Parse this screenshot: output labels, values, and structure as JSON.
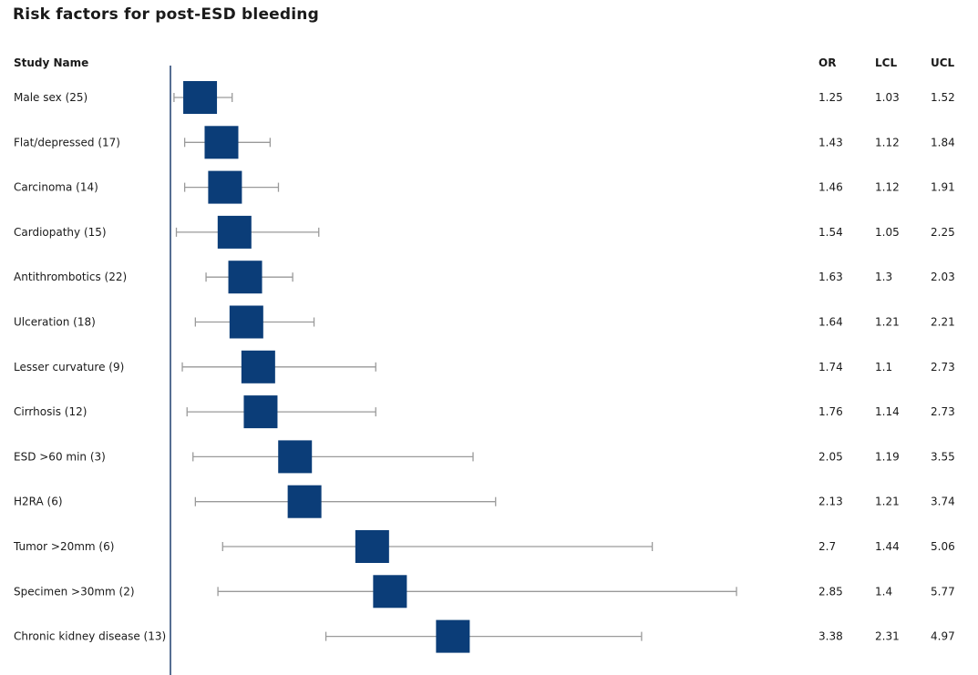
{
  "title": "Risk factors for post-ESD bleeding",
  "headers": {
    "study": "Study Name",
    "or": "OR",
    "lcl": "LCL",
    "ucl": "UCL"
  },
  "colors": {
    "marker": "#0b3d78",
    "whisker": "#9a9a9a",
    "axis": "#1f3f6e"
  },
  "chart_data": {
    "type": "forest",
    "title": "Risk factors for post-ESD bleeding",
    "columns": [
      "Study Name",
      "OR",
      "LCL",
      "UCL"
    ],
    "rows": [
      {
        "name": "Male sex (25)",
        "or": "1.25",
        "lcl": "1.03",
        "ucl": "1.52"
      },
      {
        "name": "Flat/depressed (17)",
        "or": "1.43",
        "lcl": "1.12",
        "ucl": "1.84"
      },
      {
        "name": "Carcinoma (14)",
        "or": "1.46",
        "lcl": "1.12",
        "ucl": "1.91"
      },
      {
        "name": "Cardiopathy (15)",
        "or": "1.54",
        "lcl": "1.05",
        "ucl": "2.25"
      },
      {
        "name": "Antithrombotics (22)",
        "or": "1.63",
        "lcl": "1.3",
        "ucl": "2.03"
      },
      {
        "name": "Ulceration (18)",
        "or": "1.64",
        "lcl": "1.21",
        "ucl": "2.21"
      },
      {
        "name": "Lesser curvature (9)",
        "or": "1.74",
        "lcl": "1.1",
        "ucl": "2.73"
      },
      {
        "name": "Cirrhosis (12)",
        "or": "1.76",
        "lcl": "1.14",
        "ucl": "2.73"
      },
      {
        "name": "ESD >60 min (3)",
        "or": "2.05",
        "lcl": "1.19",
        "ucl": "3.55"
      },
      {
        "name": "H2RA (6)",
        "or": "2.13",
        "lcl": "1.21",
        "ucl": "3.74"
      },
      {
        "name": "Tumor >20mm (6)",
        "or": "2.7",
        "lcl": "1.44",
        "ucl": "5.06"
      },
      {
        "name": "Specimen >30mm (2)",
        "or": "2.85",
        "lcl": "1.4",
        "ucl": "5.77"
      },
      {
        "name": "Chronic kidney disease (13)",
        "or": "3.38",
        "lcl": "2.31",
        "ucl": "4.97"
      }
    ],
    "reference_line": 1,
    "grid": false
  }
}
